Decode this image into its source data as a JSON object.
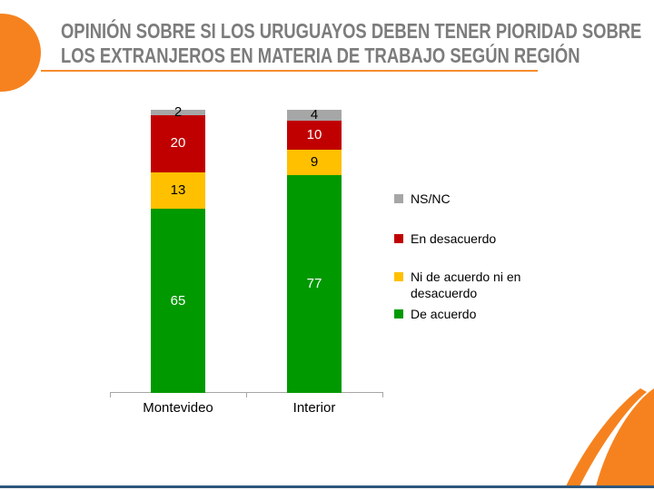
{
  "slide": {
    "title_line1": "OPINIÓN SOBRE SI LOS URUGUAYOS DEBEN TENER PIORIDAD SOBRE",
    "title_line2": "LOS EXTRANJEROS EN MATERIA DE TRABAJO SEGÚN REGIÓN",
    "accent_orange": "#F6821F",
    "title_gray": "#7C7C7C",
    "footer_line_color": "#2D577D"
  },
  "chart_data": {
    "type": "bar",
    "stacked": true,
    "orientation": "vertical",
    "title": "",
    "xlabel": "",
    "ylabel": "",
    "categories": [
      "Montevideo",
      "Interior"
    ],
    "series": [
      {
        "name": "De acuerdo",
        "values": [
          65,
          77
        ],
        "color": "#009900",
        "label_color": "#FFFFFF"
      },
      {
        "name": "Ni de acuerdo ni en desacuerdo",
        "values": [
          13,
          9
        ],
        "color": "#FFC000",
        "label_color": "#000000"
      },
      {
        "name": "En desacuerdo",
        "values": [
          20,
          10
        ],
        "color": "#C00000",
        "label_color": "#FFFFFF"
      },
      {
        "name": "NS/NC",
        "values": [
          2,
          4
        ],
        "color": "#A6A6A6",
        "label_color": "#000000"
      }
    ],
    "legend": [
      {
        "label": "NS/NC",
        "color": "#A6A6A6"
      },
      {
        "label": "En desacuerdo",
        "color": "#C00000"
      },
      {
        "label": "Ni de acuerdo ni en desacuerdo",
        "color": "#FFC000"
      },
      {
        "label": "De acuerdo",
        "color": "#009900"
      }
    ],
    "legend_position": "right",
    "ylim": [
      0,
      100
    ],
    "gridlines": false,
    "axis_color": "#A6A6A6",
    "data_labels": true
  }
}
